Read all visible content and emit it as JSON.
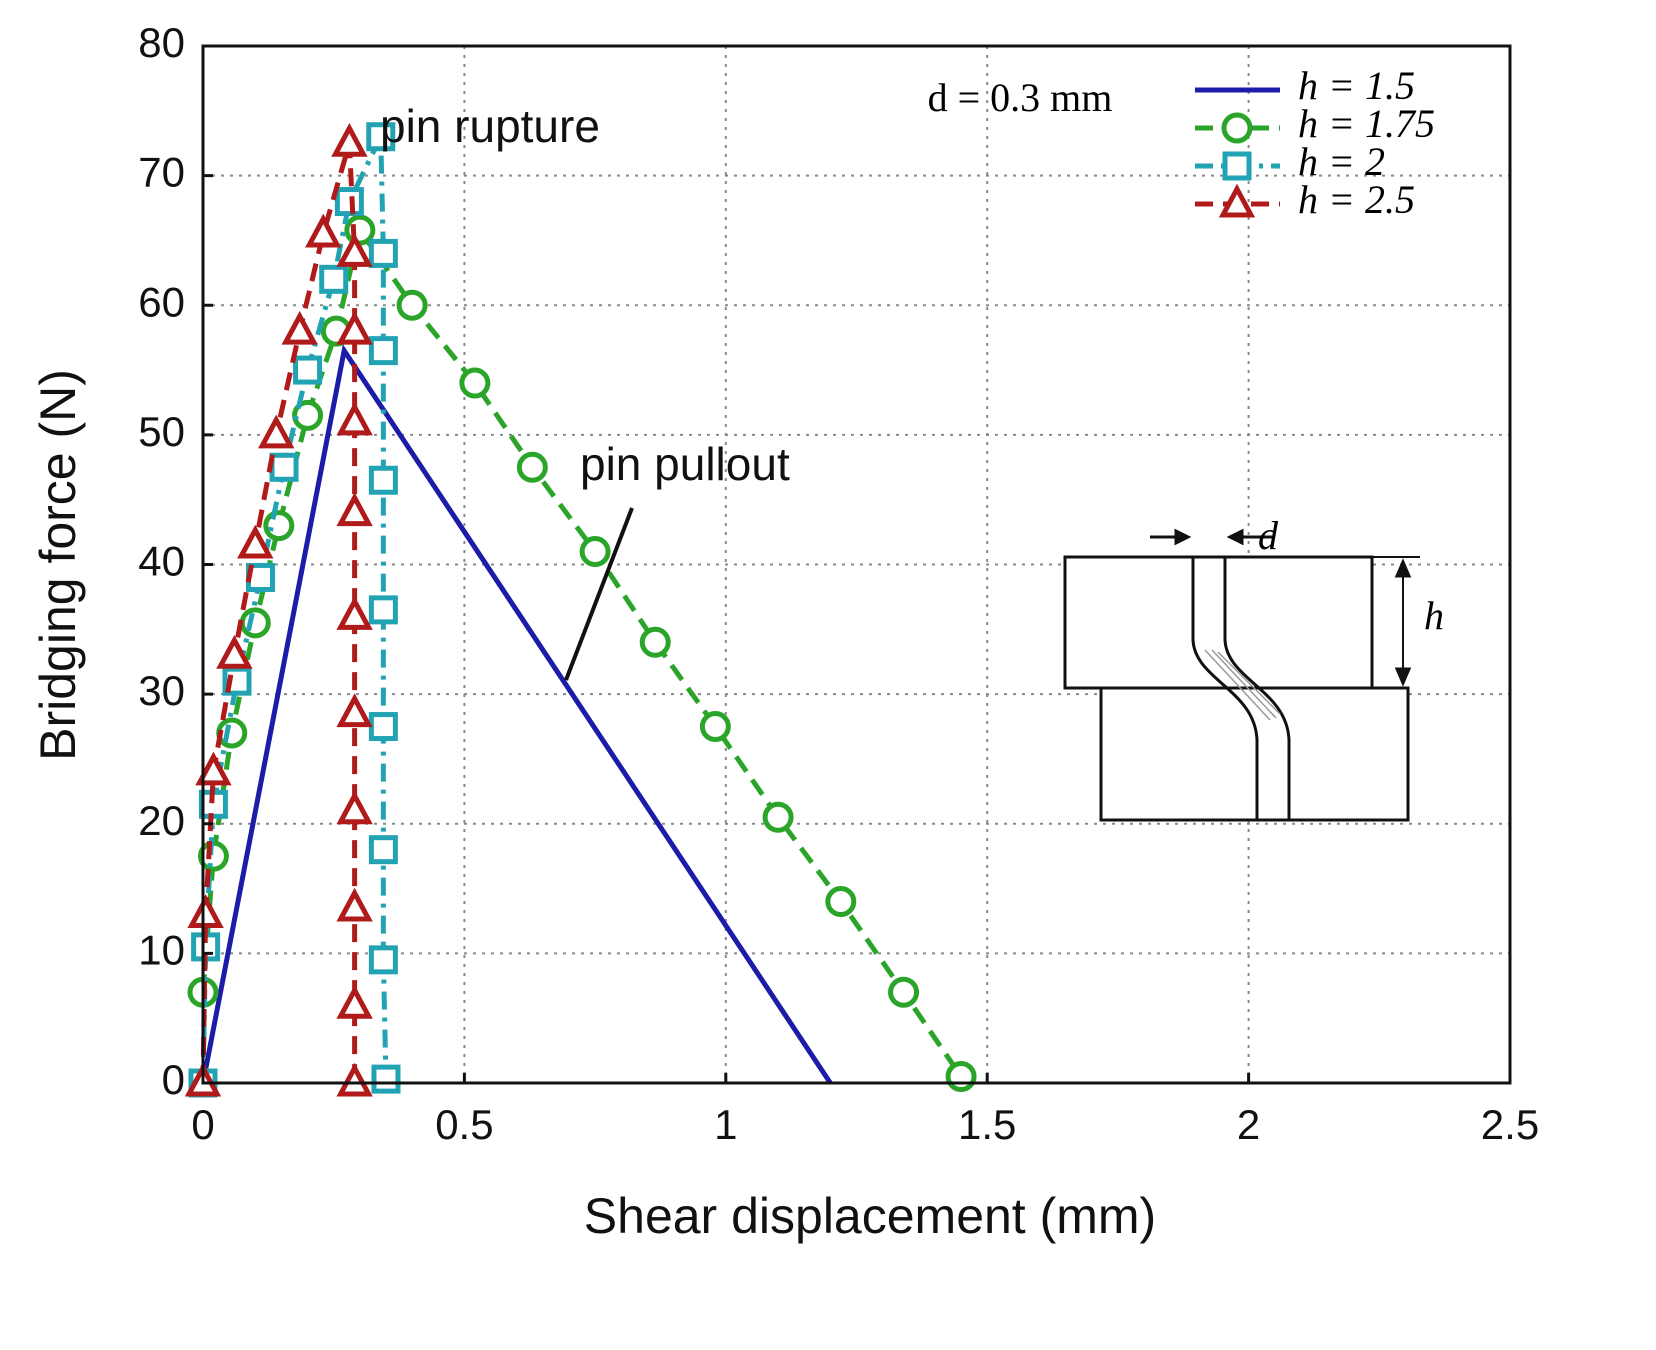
{
  "chart_data": {
    "type": "line",
    "xlabel": "Shear displacement (mm)",
    "ylabel": "Bridging force (N)",
    "xlim": [
      0,
      2.5
    ],
    "ylim": [
      0,
      80
    ],
    "xticks": [
      0,
      0.5,
      1,
      1.5,
      2,
      2.5
    ],
    "yticks": [
      0,
      10,
      20,
      30,
      40,
      50,
      60,
      70,
      80
    ],
    "grid": true,
    "legend": "upper right",
    "annotations": [
      "pin rupture",
      "pin pullout",
      "d = 0.3 mm"
    ],
    "inset_labels": [
      "d",
      "h"
    ],
    "series": [
      {
        "name": "h = 1.5",
        "color": "#1c1ca8",
        "linestyle": "solid",
        "marker": "none",
        "x": [
          0,
          0.27,
          1.2
        ],
        "values": [
          0,
          56.5,
          0
        ]
      },
      {
        "name": "h = 1.75",
        "color": "#2aa52a",
        "linestyle": "dashed",
        "marker": "circle",
        "x": [
          0,
          0.02,
          0.055,
          0.1,
          0.145,
          0.2,
          0.255,
          0.3,
          0.4,
          0.52,
          0.63,
          0.75,
          0.865,
          0.98,
          1.1,
          1.22,
          1.34,
          1.45
        ],
        "values": [
          7,
          17.5,
          27,
          35.5,
          43,
          51.5,
          58,
          65.8,
          60,
          54,
          47.5,
          41,
          34,
          27.5,
          20.5,
          14,
          7,
          0.5
        ]
      },
      {
        "name": "h = 2",
        "color": "#22a3b3",
        "linestyle": "dashdot",
        "marker": "square",
        "x": [
          0,
          0.005,
          0.02,
          0.065,
          0.11,
          0.155,
          0.2,
          0.25,
          0.28,
          0.34,
          0.345,
          0.345,
          0.345,
          0.345,
          0.345,
          0.345,
          0.345,
          0.35
        ],
        "values": [
          0,
          10.5,
          21.5,
          31,
          39,
          47.5,
          55,
          62,
          68,
          73,
          64,
          56.5,
          46.5,
          36.5,
          27.5,
          18,
          9.5,
          0.3
        ]
      },
      {
        "name": "h = 2.5",
        "color": "#b01a1a",
        "linestyle": "dashed",
        "marker": "triangle",
        "x": [
          0,
          0.005,
          0.02,
          0.06,
          0.1,
          0.14,
          0.185,
          0.23,
          0.28,
          0.29,
          0.29,
          0.29,
          0.29,
          0.29,
          0.29,
          0.29,
          0.29,
          0.29,
          0.29
        ],
        "values": [
          0,
          13,
          24,
          33,
          41.5,
          50,
          58,
          65.5,
          72.5,
          64,
          58,
          51,
          44,
          36,
          28.5,
          21,
          13.5,
          6,
          0
        ]
      }
    ]
  }
}
